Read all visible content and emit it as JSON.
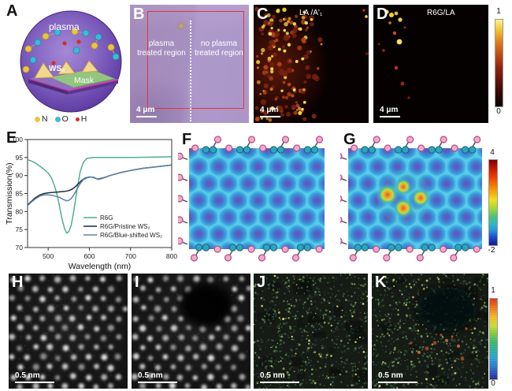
{
  "panels": {
    "a": {
      "label": "A",
      "plasma": "plasma",
      "ws2": "WS₂",
      "mask": "Mask",
      "legend": [
        {
          "name": "N",
          "color": "#e9c63d"
        },
        {
          "name": "O",
          "color": "#3fb9d9"
        },
        {
          "name": "H",
          "color": "#da2c1e"
        }
      ]
    },
    "b": {
      "label": "B",
      "region_left": "plasma treated region",
      "region_right": "no plasma treated region",
      "scale": "4 μm"
    },
    "c": {
      "label": "C",
      "title": "LA /A'₁",
      "scale": "4 μm"
    },
    "d": {
      "label": "D",
      "title": "R6G/LA",
      "scale": "4 μm"
    },
    "e": {
      "label": "E"
    },
    "f": {
      "label": "F"
    },
    "g": {
      "label": "G"
    },
    "h": {
      "label": "H",
      "scale": "0.5 nm"
    },
    "i": {
      "label": "I",
      "scale": "0.5 nm"
    },
    "j": {
      "label": "J",
      "scale": "0.5 nm"
    },
    "k": {
      "label": "K",
      "scale": "0.5 nm"
    }
  },
  "colorbars": {
    "cd": {
      "max": "1",
      "min": "0"
    },
    "g": {
      "max": "4",
      "min": "-2"
    },
    "jk": {
      "max": "1",
      "min": "0"
    }
  },
  "colors": {
    "frame_red": "#e6323e",
    "lattice_blue": "#3f7ed2",
    "lattice_cyan": "#57cbe8",
    "atom_pink": "#f2a9cc",
    "atom_teal": "#2fa3bd"
  },
  "chart_data": {
    "type": "line",
    "title": "",
    "xlabel": "Wavelength (nm)",
    "ylabel": "Transmission(%)",
    "xlim": [
      450,
      800
    ],
    "ylim": [
      70,
      100
    ],
    "xticks": [
      500,
      600,
      700,
      800
    ],
    "yticks": [
      70,
      75,
      80,
      85,
      90,
      95,
      100
    ],
    "grid": false,
    "legend_position": "lower right",
    "series": [
      {
        "name": "R6G",
        "color": "#4fb08c",
        "x": [
          450,
          460,
          470,
          480,
          490,
          500,
          508,
          515,
          522,
          528,
          534,
          540,
          545,
          550,
          556,
          562,
          570,
          578,
          586,
          595,
          610,
          640,
          700,
          750,
          800
        ],
        "y": [
          94.4,
          94.0,
          93.4,
          92.6,
          91.7,
          90.7,
          89.3,
          87.3,
          84.6,
          81.2,
          77.8,
          75.2,
          74.0,
          74.4,
          76.2,
          80.0,
          86.0,
          91.2,
          93.8,
          94.8,
          95.0,
          95.0,
          95.0,
          95.1,
          95.2
        ]
      },
      {
        "name": "R6G/Pristine WS₂",
        "color": "#1e2c38",
        "x": [
          450,
          460,
          470,
          480,
          490,
          500,
          510,
          520,
          530,
          540,
          550,
          558,
          566,
          574,
          582,
          590,
          600,
          610,
          620,
          632,
          650,
          675,
          700,
          730,
          760,
          800
        ],
        "y": [
          81.8,
          82.9,
          83.9,
          84.6,
          85.0,
          85.2,
          85.3,
          85.4,
          85.5,
          85.6,
          85.8,
          86.2,
          86.9,
          87.8,
          88.7,
          89.3,
          89.6,
          89.5,
          89.0,
          89.3,
          90.0,
          90.8,
          91.4,
          92.0,
          92.4,
          92.9
        ]
      },
      {
        "name": "R6G/Blue-shifted WS₂",
        "color": "#5e83ab",
        "x": [
          450,
          460,
          470,
          480,
          490,
          500,
          510,
          520,
          528,
          536,
          544,
          550,
          556,
          562,
          570,
          578,
          586,
          595,
          605,
          615,
          622,
          632,
          650,
          675,
          700,
          730,
          760,
          800
        ],
        "y": [
          81.6,
          82.7,
          83.6,
          84.3,
          84.6,
          84.6,
          84.5,
          84.2,
          83.9,
          83.4,
          83.0,
          83.1,
          83.6,
          84.6,
          86.2,
          87.8,
          88.9,
          89.4,
          89.6,
          89.2,
          88.9,
          89.2,
          90.0,
          90.8,
          91.4,
          92.0,
          92.4,
          92.9
        ]
      }
    ]
  }
}
